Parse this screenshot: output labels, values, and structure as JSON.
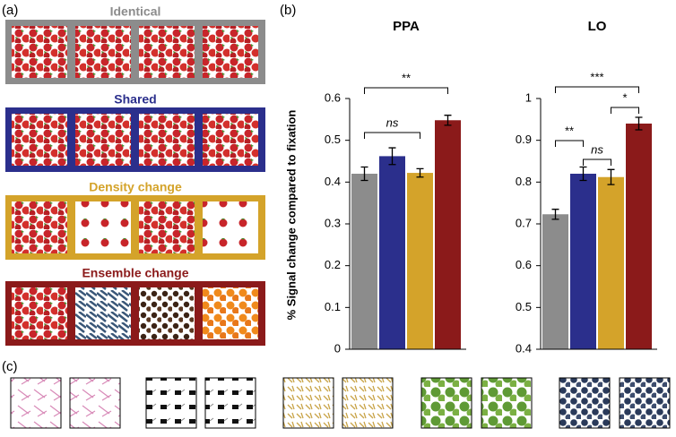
{
  "panel_labels": [
    "(a)",
    "(b)",
    "(c)"
  ],
  "panel_a": {
    "conditions": [
      {
        "label": "Identical",
        "color": "#8c8c8c"
      },
      {
        "label": "Shared",
        "color": "#2b2f8c"
      },
      {
        "label": "Density change",
        "color": "#d4a32a"
      },
      {
        "label": "Ensemble change",
        "color": "#8b1a1a"
      }
    ]
  },
  "chart_data": [
    {
      "type": "bar",
      "title": "PPA",
      "y_label": "% Signal change compared to fixation",
      "values": [
        0.42,
        0.462,
        0.422,
        0.548
      ],
      "errors": [
        0.016,
        0.02,
        0.01,
        0.012
      ],
      "colors": [
        "#8c8c8c",
        "#2b2f8c",
        "#d4a32a",
        "#8b1a1a"
      ],
      "ylim": [
        0,
        0.6
      ],
      "yticks": [
        0,
        0.1,
        0.2,
        0.3,
        0.4,
        0.5,
        0.6
      ],
      "annotations": [
        "ns",
        "**"
      ]
    },
    {
      "type": "bar",
      "title": "LO",
      "values": [
        0.723,
        0.82,
        0.812,
        0.94
      ],
      "errors": [
        0.012,
        0.016,
        0.018,
        0.015
      ],
      "colors": [
        "#8c8c8c",
        "#2b2f8c",
        "#d4a32a",
        "#8b1a1a"
      ],
      "ylim": [
        0.4,
        1
      ],
      "yticks": [
        0.4,
        0.5,
        0.6,
        0.7,
        0.8,
        0.9,
        1
      ],
      "annotations": [
        "**",
        "ns",
        "*",
        "***"
      ]
    }
  ]
}
